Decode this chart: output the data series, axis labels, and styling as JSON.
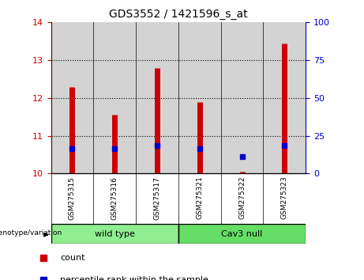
{
  "title": "GDS3552 / 1421596_s_at",
  "samples": [
    "GSM275315",
    "GSM275316",
    "GSM275317",
    "GSM275321",
    "GSM275322",
    "GSM275323"
  ],
  "red_bar_top": [
    12.3,
    11.55,
    12.8,
    11.9,
    10.05,
    13.45
  ],
  "red_bar_bottom": [
    10.0,
    10.0,
    10.0,
    10.0,
    10.0,
    10.0
  ],
  "blue_dot_y": [
    10.65,
    10.65,
    10.75,
    10.65,
    10.45,
    10.75
  ],
  "ylim_left": [
    10,
    14
  ],
  "ylim_right": [
    0,
    100
  ],
  "yticks_left": [
    10,
    11,
    12,
    13,
    14
  ],
  "yticks_right": [
    0,
    25,
    50,
    75,
    100
  ],
  "wt_color": "#90EE90",
  "cav_color": "#66DD66",
  "bar_color": "#CC0000",
  "dot_color": "#0000CC",
  "left_axis_color": "#CC0000",
  "right_axis_color": "#0000CC",
  "col_bg_color": "#D3D3D3",
  "plot_bg_color": "#FFFFFF",
  "figsize": [
    4.61,
    3.54
  ],
  "dpi": 100
}
